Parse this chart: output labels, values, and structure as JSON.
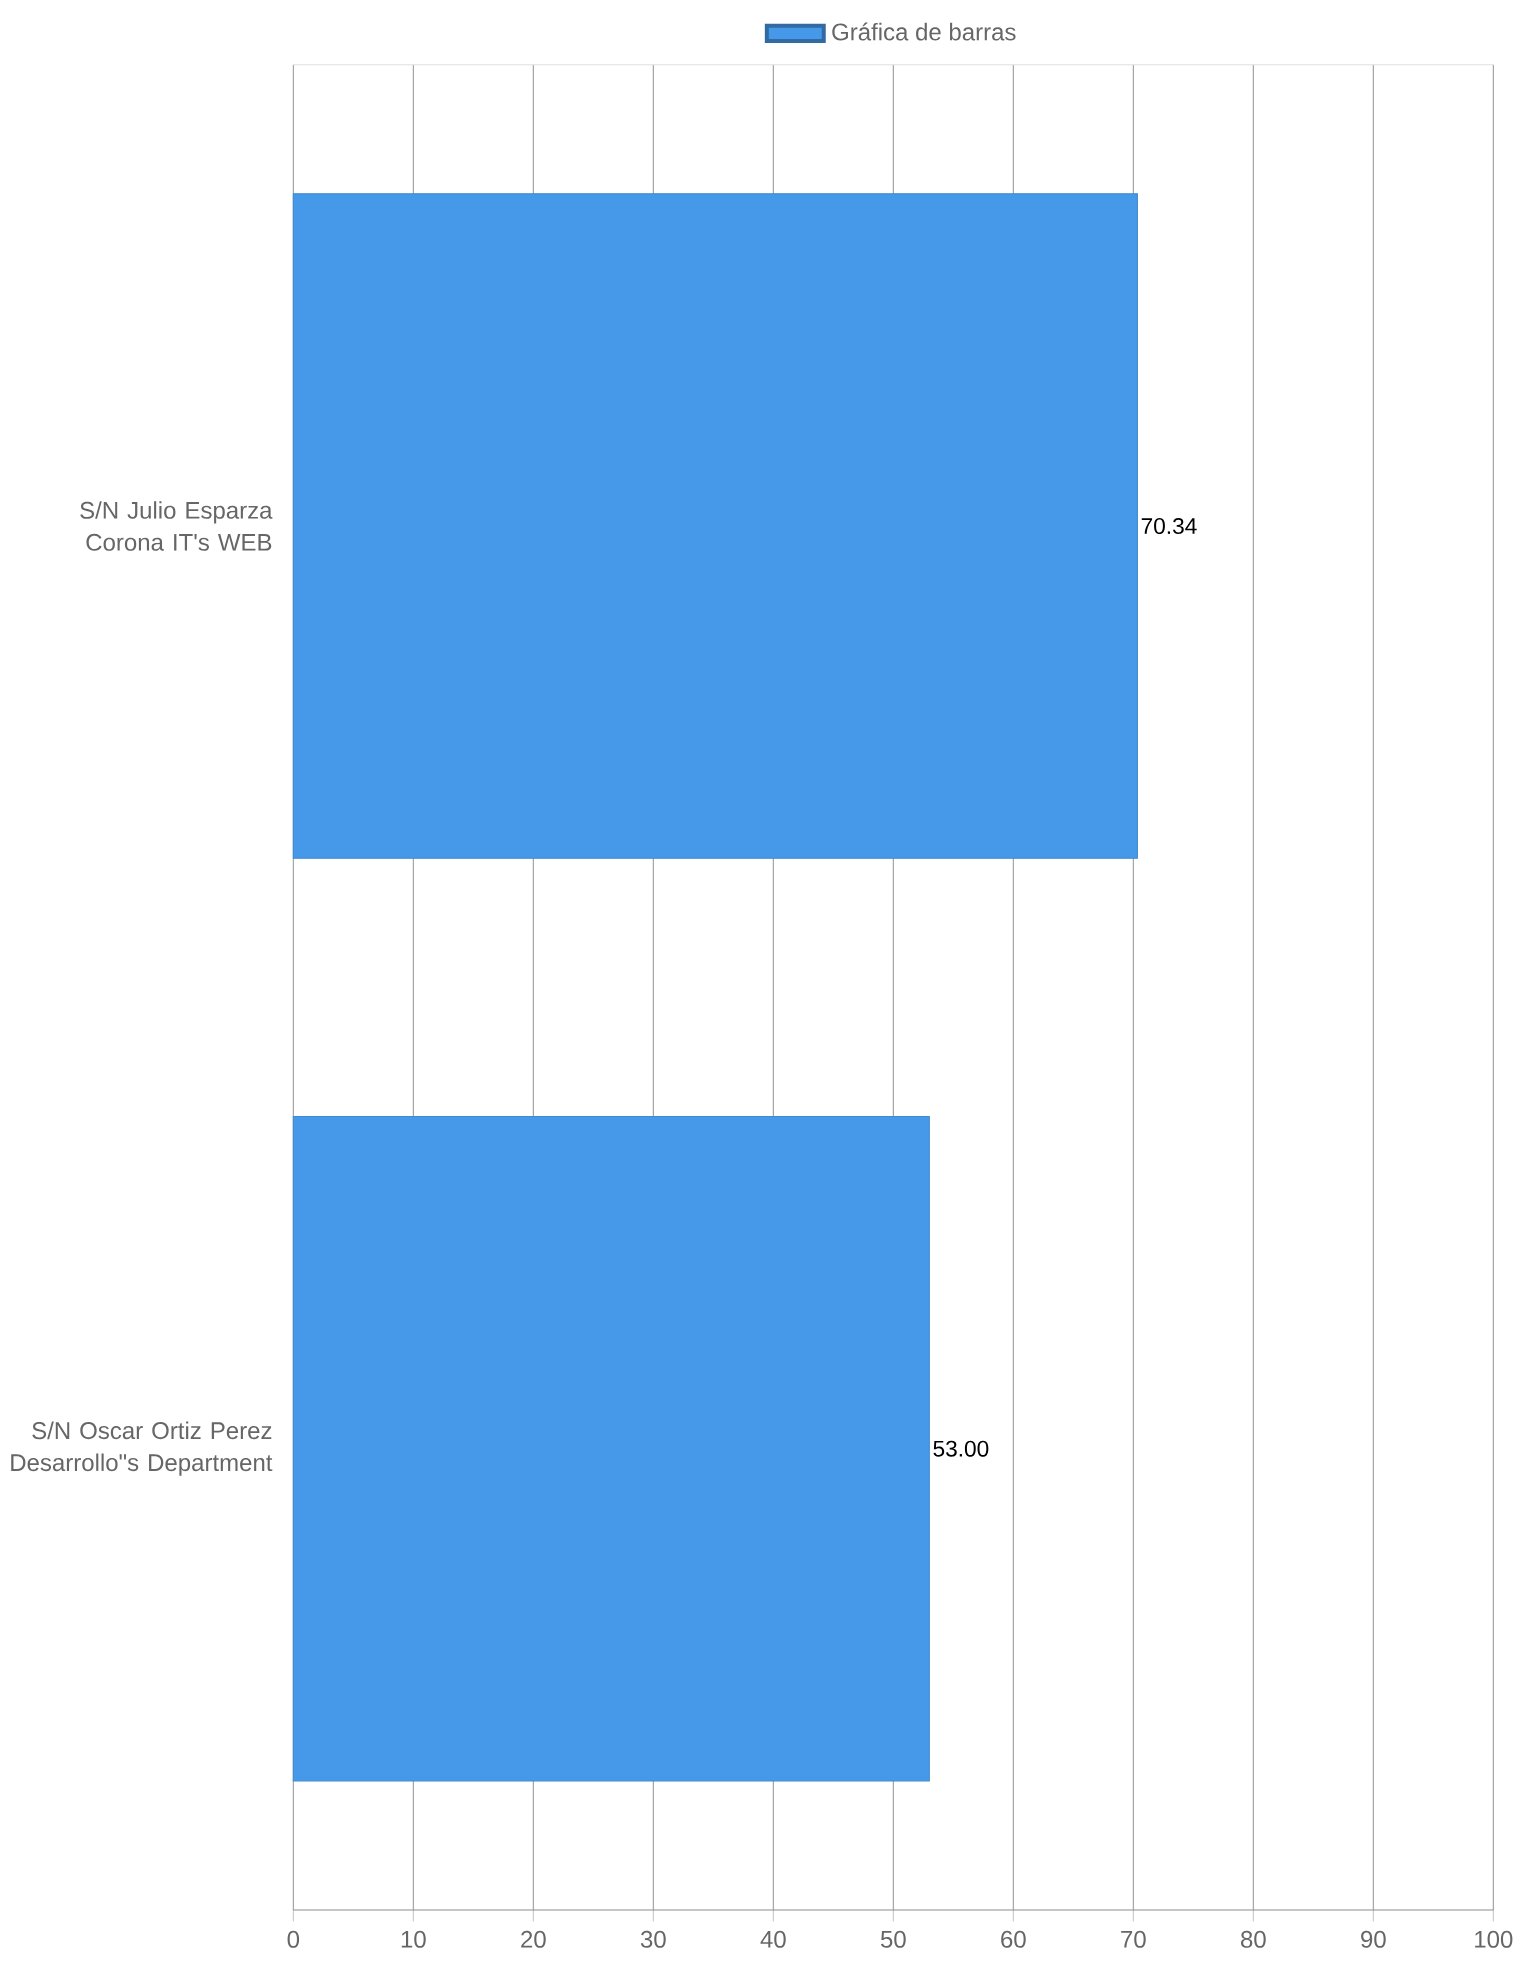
{
  "chart_data": {
    "type": "bar",
    "orientation": "horizontal",
    "categories": [
      "S/N Julio Esparza Corona IT's WEB",
      "S/N Oscar Ortiz Perez Desarrollo\"s Department"
    ],
    "series": [
      {
        "name": "Gráfica de barras",
        "color": "#4699e8",
        "values": [
          70.34,
          53.0
        ],
        "value_labels": [
          "70.34",
          "53.00"
        ]
      }
    ],
    "xlim": [
      0,
      100
    ],
    "xticks": [
      0,
      10,
      20,
      30,
      40,
      50,
      60,
      70,
      80,
      90,
      100
    ],
    "grid": "x",
    "legend": "top"
  }
}
